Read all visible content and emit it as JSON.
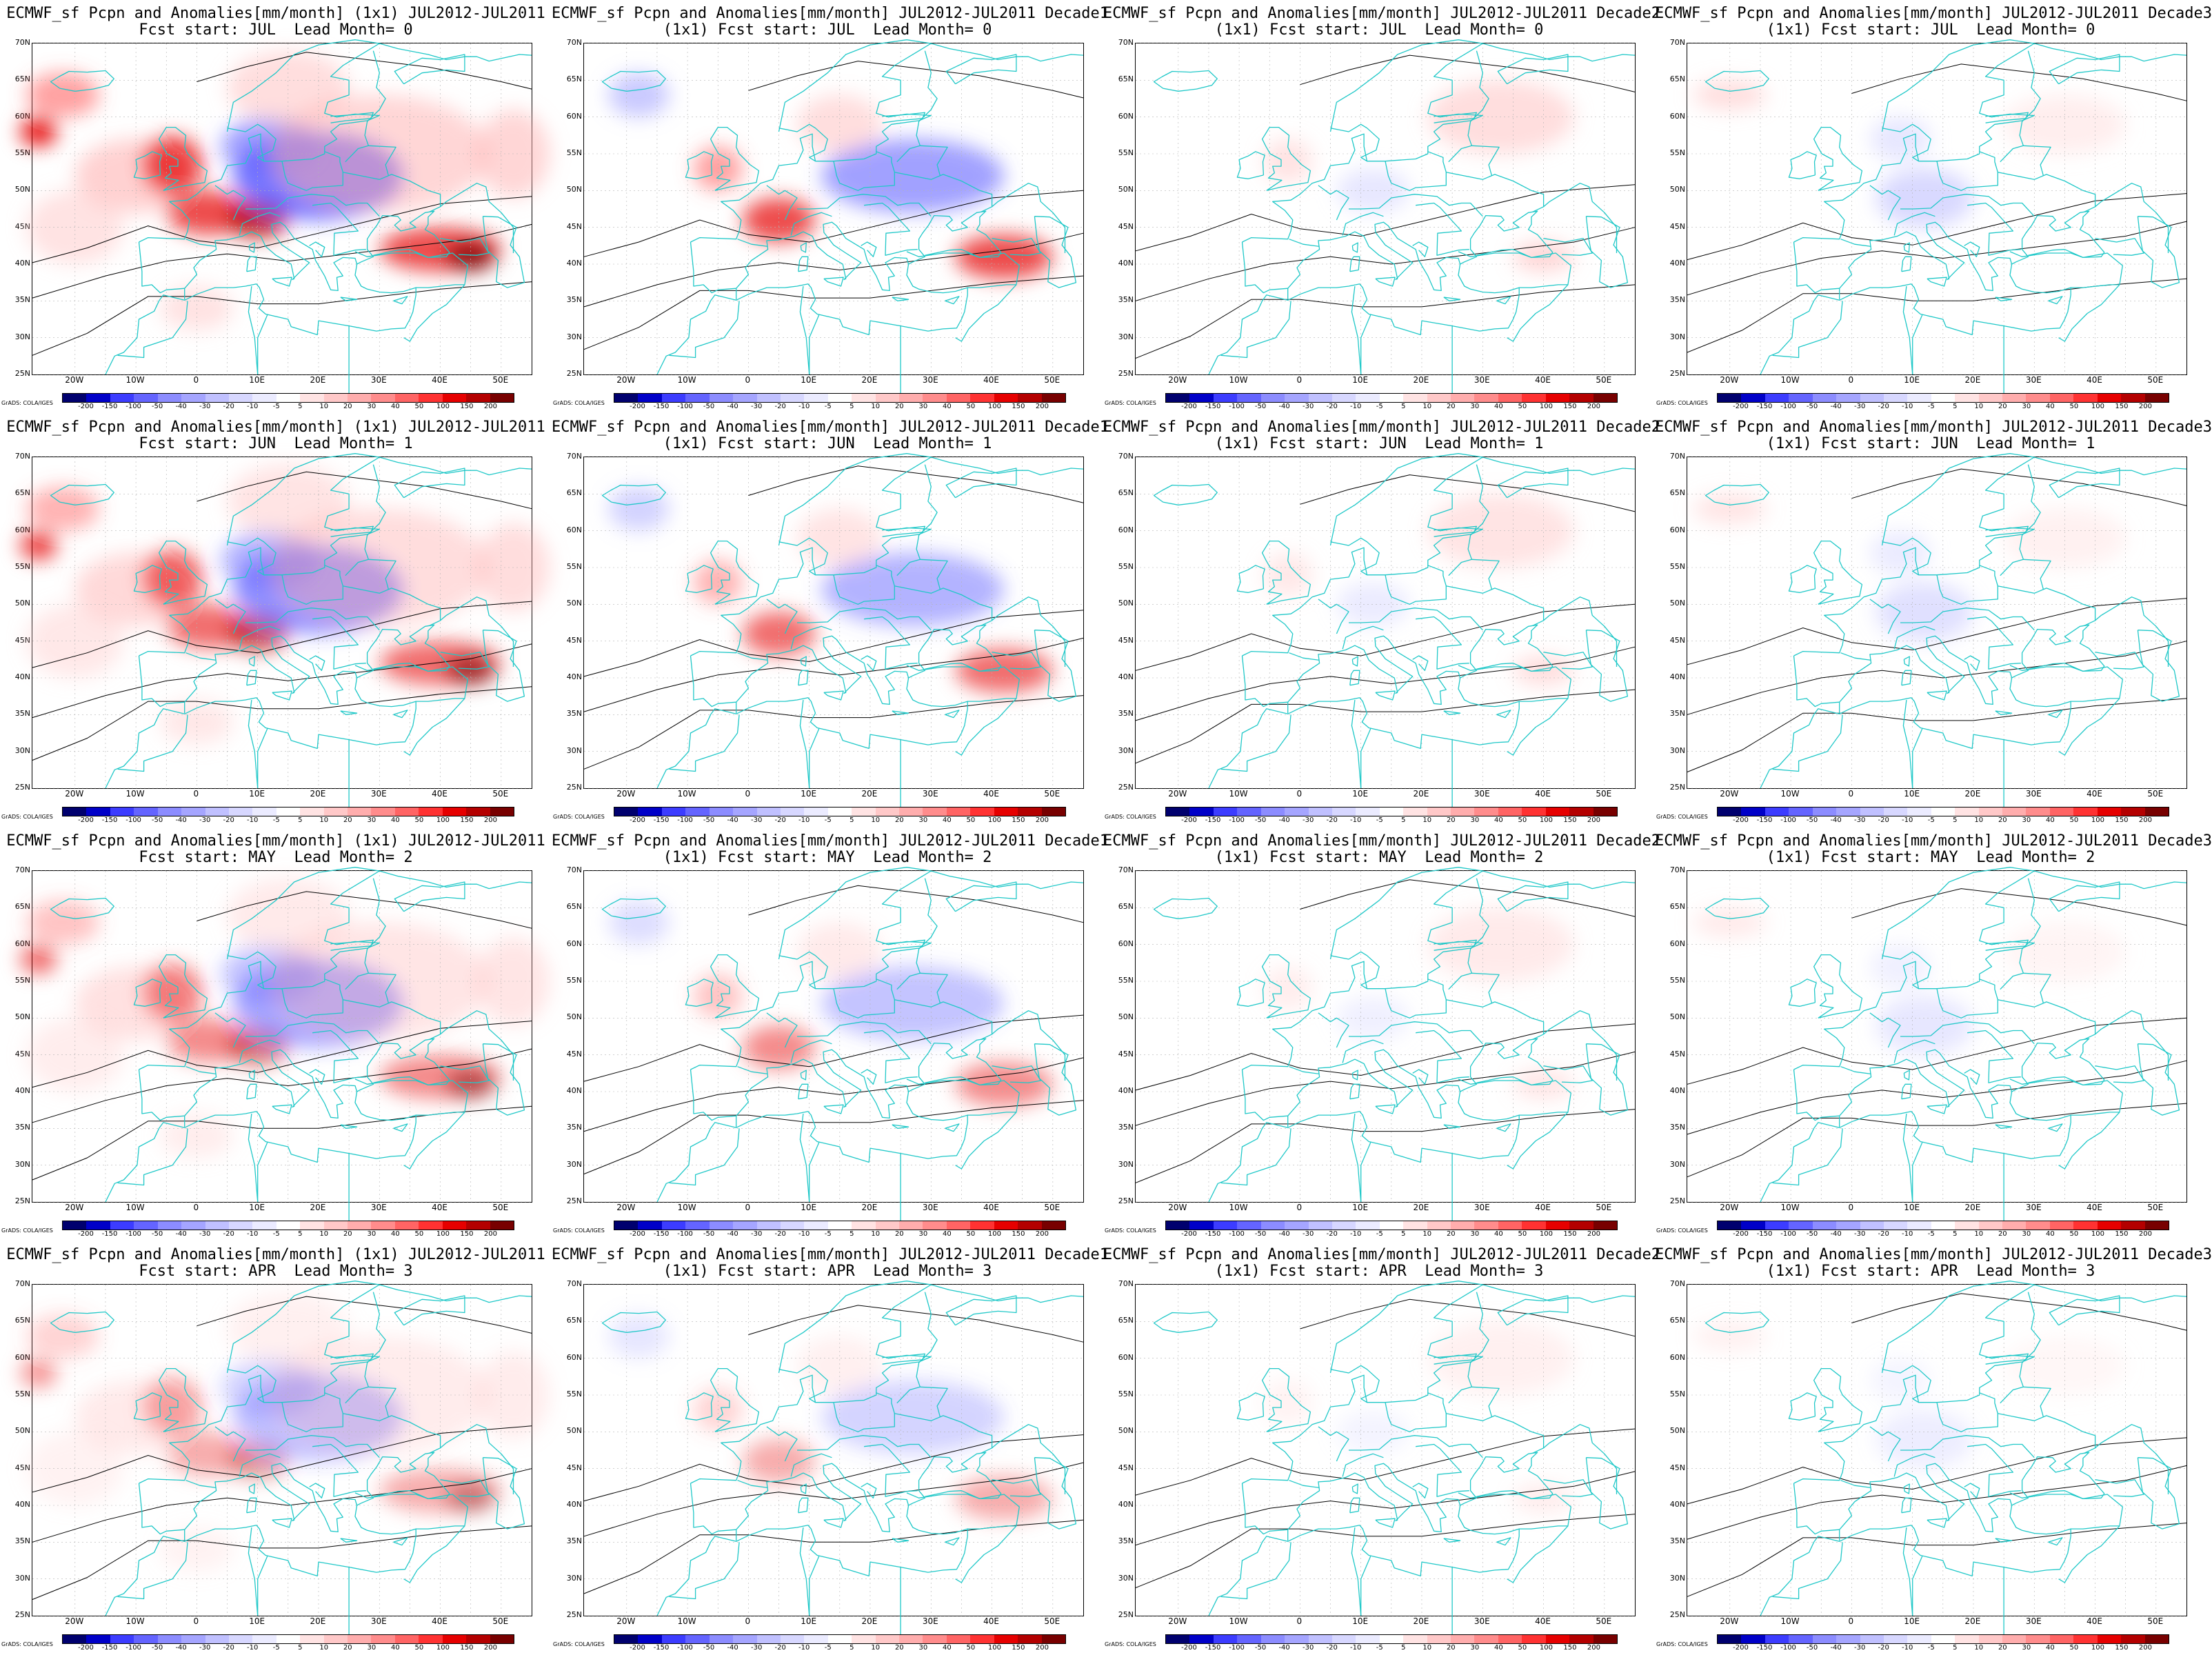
{
  "panels": [
    {
      "title1": "ECMWF_sf Pcpn and Anomalies[mm/month] (1x1) JUL2012-JUL2011",
      "title2": "Fcst start: JUL  Lead Month= 0",
      "field": "monthly",
      "start": "JUL",
      "lead": 0
    },
    {
      "title1": "ECMWF_sf Pcpn and Anomalies[mm/month] JUL2012-JUL2011 Decade1",
      "title2": "(1x1) Fcst start: JUL  Lead Month= 0",
      "field": "decade1",
      "start": "JUL",
      "lead": 0
    },
    {
      "title1": "ECMWF_sf Pcpn and Anomalies[mm/month] JUL2012-JUL2011 Decade2",
      "title2": "(1x1) Fcst start: JUL  Lead Month= 0",
      "field": "decade2",
      "start": "JUL",
      "lead": 0
    },
    {
      "title1": "ECMWF_sf Pcpn and Anomalies[mm/month] JUL2012-JUL2011 Decade3",
      "title2": "(1x1) Fcst start: JUL  Lead Month= 0",
      "field": "decade3",
      "start": "JUL",
      "lead": 0
    },
    {
      "title1": "ECMWF_sf Pcpn and Anomalies[mm/month] (1x1) JUL2012-JUL2011",
      "title2": "Fcst start: JUN  Lead Month= 1",
      "field": "monthly",
      "start": "JUN",
      "lead": 1
    },
    {
      "title1": "ECMWF_sf Pcpn and Anomalies[mm/month] JUL2012-JUL2011 Decade1",
      "title2": "(1x1) Fcst start: JUN  Lead Month= 1",
      "field": "decade1",
      "start": "JUN",
      "lead": 1
    },
    {
      "title1": "ECMWF_sf Pcpn and Anomalies[mm/month] JUL2012-JUL2011 Decade2",
      "title2": "(1x1) Fcst start: JUN  Lead Month= 1",
      "field": "decade2",
      "start": "JUN",
      "lead": 1
    },
    {
      "title1": "ECMWF_sf Pcpn and Anomalies[mm/month] JUL2012-JUL2011 Decade3",
      "title2": "(1x1) Fcst start: JUN  Lead Month= 1",
      "field": "decade3",
      "start": "JUN",
      "lead": 1
    },
    {
      "title1": "ECMWF_sf Pcpn and Anomalies[mm/month] (1x1) JUL2012-JUL2011",
      "title2": "Fcst start: MAY  Lead Month= 2",
      "field": "monthly",
      "start": "MAY",
      "lead": 2
    },
    {
      "title1": "ECMWF_sf Pcpn and Anomalies[mm/month] JUL2012-JUL2011 Decade1",
      "title2": "(1x1) Fcst start: MAY  Lead Month= 2",
      "field": "decade1",
      "start": "MAY",
      "lead": 2
    },
    {
      "title1": "ECMWF_sf Pcpn and Anomalies[mm/month] JUL2012-JUL2011 Decade2",
      "title2": "(1x1) Fcst start: MAY  Lead Month= 2",
      "field": "decade2",
      "start": "MAY",
      "lead": 2
    },
    {
      "title1": "ECMWF_sf Pcpn and Anomalies[mm/month] JUL2012-JUL2011 Decade3",
      "title2": "(1x1) Fcst start: MAY  Lead Month= 2",
      "field": "decade3",
      "start": "MAY",
      "lead": 2
    },
    {
      "title1": "ECMWF_sf Pcpn and Anomalies[mm/month] (1x1) JUL2012-JUL2011",
      "title2": "Fcst start: APR  Lead Month= 3",
      "field": "monthly",
      "start": "APR",
      "lead": 3
    },
    {
      "title1": "ECMWF_sf Pcpn and Anomalies[mm/month] JUL2012-JUL2011 Decade1",
      "title2": "(1x1) Fcst start: APR  Lead Month= 3",
      "field": "decade1",
      "start": "APR",
      "lead": 3
    },
    {
      "title1": "ECMWF_sf Pcpn and Anomalies[mm/month] JUL2012-JUL2011 Decade2",
      "title2": "(1x1) Fcst start: APR  Lead Month= 3",
      "field": "decade2",
      "start": "APR",
      "lead": 3
    },
    {
      "title1": "ECMWF_sf Pcpn and Anomalies[mm/month] JUL2012-JUL2011 Decade3",
      "title2": "(1x1) Fcst start: APR  Lead Month= 3",
      "field": "decade3",
      "start": "APR",
      "lead": 3
    }
  ],
  "lat_labels": [
    "70N",
    "65N",
    "60N",
    "55N",
    "50N",
    "45N",
    "40N",
    "35N",
    "30N",
    "25N"
  ],
  "lon_labels": [
    "20W",
    "10W",
    "0",
    "10E",
    "20E",
    "30E",
    "40E",
    "50E"
  ],
  "extent": {
    "lon_min": -27,
    "lon_max": 55,
    "lat_min": 25,
    "lat_max": 70
  },
  "colorbar": {
    "labels": [
      "-200",
      "-150",
      "-100",
      "-50",
      "-40",
      "-30",
      "-20",
      "-10",
      "-5",
      "5",
      "10",
      "20",
      "30",
      "40",
      "50",
      "100",
      "150",
      "200"
    ],
    "colors": [
      "#00006e",
      "#0000c8",
      "#3c3cff",
      "#6464ff",
      "#8c8cff",
      "#a5a5ff",
      "#c0c0ff",
      "#d7d7ff",
      "#ebebff",
      "#ffffff",
      "#ffe3e3",
      "#ffc8c8",
      "#ffadad",
      "#ff8c8c",
      "#ff6464",
      "#ff3232",
      "#e60000",
      "#b40000",
      "#780000"
    ]
  },
  "credit": "GrADS: COLA/IGES",
  "colors": {
    "coast": "#20c8c8",
    "contour": "#000000",
    "grid": "#b4b4b4"
  }
}
